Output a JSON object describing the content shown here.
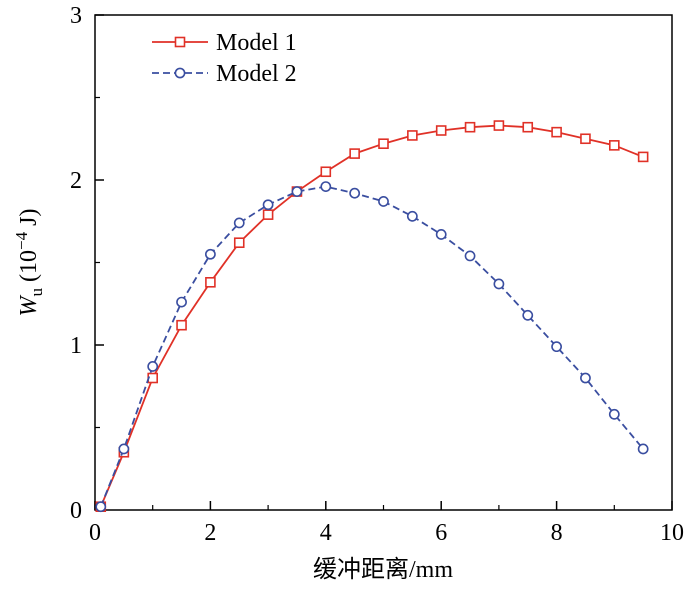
{
  "figure": {
    "background": "#ffffff",
    "frame_color": "#000000"
  },
  "chart_data": {
    "type": "line",
    "title": "",
    "xlabel": "缓冲距离/mm",
    "ylabel": {
      "symbol": "W",
      "subscript": "u",
      "unit_pre": " (10",
      "unit_exp": "−4",
      "unit_post": " J)"
    },
    "xlim": [
      0,
      10
    ],
    "ylim": [
      0,
      3
    ],
    "x_major_ticks": [
      0,
      2,
      4,
      6,
      8,
      10
    ],
    "x_minor_ticks": [
      1,
      3,
      5,
      7,
      9
    ],
    "y_major_ticks": [
      0,
      1,
      2,
      3
    ],
    "y_minor_ticks": [
      0.5,
      1.5,
      2.5
    ],
    "grid": false,
    "legend_position": "top-left",
    "x": [
      0.1,
      0.5,
      1.0,
      1.5,
      2.0,
      2.5,
      3.0,
      3.5,
      4.0,
      4.5,
      5.0,
      5.5,
      6.0,
      6.5,
      7.0,
      7.5,
      8.0,
      8.5,
      9.0,
      9.5
    ],
    "series": [
      {
        "name": "Model 1",
        "color": "#e03127",
        "marker": "square",
        "line_style": "solid",
        "values": [
          0.02,
          0.35,
          0.8,
          1.12,
          1.38,
          1.62,
          1.79,
          1.93,
          2.05,
          2.16,
          2.22,
          2.27,
          2.3,
          2.32,
          2.33,
          2.32,
          2.29,
          2.25,
          2.21,
          2.14
        ]
      },
      {
        "name": "Model 2",
        "color": "#3a4ea0",
        "marker": "circle",
        "line_style": "dashed",
        "values": [
          0.02,
          0.37,
          0.87,
          1.26,
          1.55,
          1.74,
          1.85,
          1.93,
          1.96,
          1.92,
          1.87,
          1.78,
          1.67,
          1.54,
          1.37,
          1.18,
          0.99,
          0.8,
          0.58,
          0.37
        ]
      }
    ]
  }
}
